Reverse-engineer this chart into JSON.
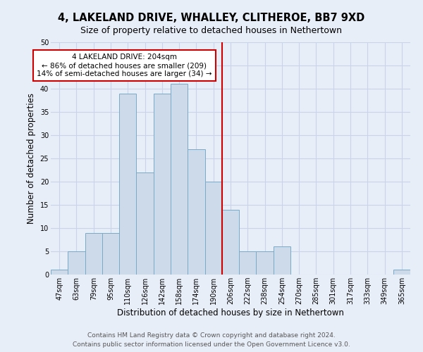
{
  "title_line1": "4, LAKELAND DRIVE, WHALLEY, CLITHEROE, BB7 9XD",
  "title_line2": "Size of property relative to detached houses in Nethertown",
  "xlabel": "Distribution of detached houses by size in Nethertown",
  "ylabel": "Number of detached properties",
  "categories": [
    "47sqm",
    "63sqm",
    "79sqm",
    "95sqm",
    "110sqm",
    "126sqm",
    "142sqm",
    "158sqm",
    "174sqm",
    "190sqm",
    "206sqm",
    "222sqm",
    "238sqm",
    "254sqm",
    "270sqm",
    "285sqm",
    "301sqm",
    "317sqm",
    "333sqm",
    "349sqm",
    "365sqm"
  ],
  "values": [
    1,
    5,
    9,
    9,
    39,
    22,
    39,
    41,
    27,
    20,
    14,
    5,
    5,
    6,
    0,
    0,
    0,
    0,
    0,
    0,
    1
  ],
  "bar_color": "#ccdaea",
  "bar_edge_color": "#7aaac8",
  "annotation_text_line1": "4 LAKELAND DRIVE: 204sqm",
  "annotation_text_line2": "← 86% of detached houses are smaller (209)",
  "annotation_text_line3": "14% of semi-detached houses are larger (34) →",
  "annotation_box_facecolor": "#ffffff",
  "annotation_box_edgecolor": "#cc0000",
  "vline_color": "#cc0000",
  "vline_x": 9.5,
  "ylim": [
    0,
    50
  ],
  "yticks": [
    0,
    5,
    10,
    15,
    20,
    25,
    30,
    35,
    40,
    45,
    50
  ],
  "grid_color": "#c8d4e8",
  "background_color": "#e8eef8",
  "footer_line1": "Contains HM Land Registry data © Crown copyright and database right 2024.",
  "footer_line2": "Contains public sector information licensed under the Open Government Licence v3.0.",
  "title_fontsize": 10.5,
  "subtitle_fontsize": 9,
  "tick_fontsize": 7,
  "ylabel_fontsize": 8.5,
  "xlabel_fontsize": 8.5,
  "annotation_fontsize": 7.5,
  "footer_fontsize": 6.5
}
